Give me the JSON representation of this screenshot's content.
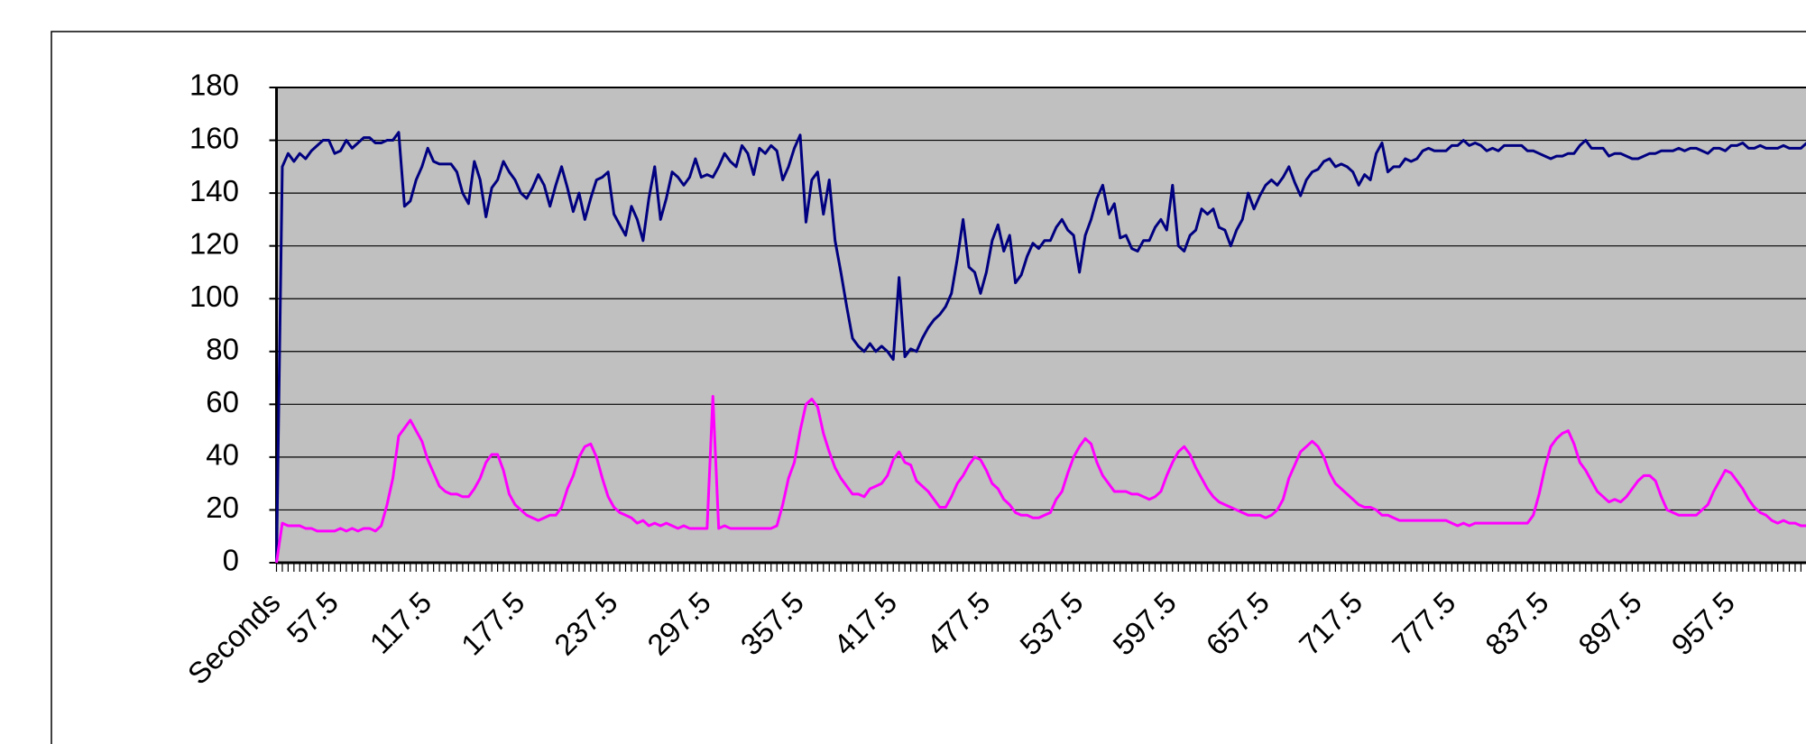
{
  "chart_data": {
    "type": "line",
    "categories": [
      "Seconds",
      null,
      null,
      null,
      null,
      null,
      null,
      null,
      null,
      null,
      "57.5",
      null,
      null,
      null,
      null,
      null,
      null,
      null,
      null,
      null,
      null,
      null,
      null,
      null,
      null,
      null,
      "117.5",
      null,
      null,
      null,
      null,
      null,
      null,
      null,
      null,
      null,
      null,
      null,
      null,
      null,
      null,
      null,
      "177.5",
      null,
      null,
      null,
      null,
      null,
      null,
      null,
      null,
      null,
      null,
      null,
      null,
      null,
      null,
      null,
      "237.5",
      null,
      null,
      null,
      null,
      null,
      null,
      null,
      null,
      null,
      null,
      null,
      null,
      null,
      null,
      null,
      "297.5",
      null,
      null,
      null,
      null,
      null,
      null,
      null,
      null,
      null,
      null,
      null,
      null,
      null,
      null,
      null,
      "357.5",
      null,
      null,
      null,
      null,
      null,
      null,
      null,
      null,
      null,
      null,
      null,
      null,
      null,
      null,
      null,
      "417.5",
      null,
      null,
      null,
      null,
      null,
      null,
      null,
      null,
      null,
      null,
      null,
      null,
      null,
      null,
      null,
      "477.5",
      null,
      null,
      null,
      null,
      null,
      null,
      null,
      null,
      null,
      null,
      null,
      null,
      null,
      null,
      null,
      "537.5",
      null,
      null,
      null,
      null,
      null,
      null,
      null,
      null,
      null,
      null,
      null,
      null,
      null,
      null,
      null,
      "597.5",
      null,
      null,
      null,
      null,
      null,
      null,
      null,
      null,
      null,
      null,
      null,
      null,
      null,
      null,
      null,
      "657.5",
      null,
      null,
      null,
      null,
      null,
      null,
      null,
      null,
      null,
      null,
      null,
      null,
      null,
      null,
      null,
      "717.5",
      null,
      null,
      null,
      null,
      null,
      null,
      null,
      null,
      null,
      null,
      null,
      null,
      null,
      null,
      null,
      "777.5",
      null,
      null,
      null,
      null,
      null,
      null,
      null,
      null,
      null,
      null,
      null,
      null,
      null,
      null,
      null,
      "837.5",
      null,
      null,
      null,
      null,
      null,
      null,
      null,
      null,
      null,
      null,
      null,
      null,
      null,
      null,
      null,
      "897.5",
      null,
      null,
      null,
      null,
      null,
      null,
      null,
      null,
      null,
      null,
      null,
      null,
      null,
      null,
      null,
      "957.5",
      null,
      null,
      null,
      null,
      null,
      null,
      null,
      null,
      null,
      null,
      null,
      null,
      null
    ],
    "series": [
      {
        "color": "#000080",
        "values": [
          0,
          150,
          155,
          152,
          155,
          153,
          156,
          158,
          160,
          160,
          155,
          156,
          160,
          157,
          159,
          161,
          161,
          159,
          159,
          160,
          160,
          163,
          135,
          137,
          145,
          150,
          157,
          152,
          151,
          151,
          151,
          148,
          140,
          136,
          152,
          145,
          131,
          142,
          145,
          152,
          148,
          145,
          140,
          138,
          142,
          147,
          143,
          135,
          143,
          150,
          142,
          133,
          140,
          130,
          138,
          145,
          146,
          148,
          132,
          128,
          124,
          135,
          130,
          122,
          138,
          150,
          130,
          138,
          148,
          146,
          143,
          146,
          153,
          146,
          147,
          146,
          150,
          155,
          152,
          150,
          158,
          155,
          147,
          157,
          155,
          158,
          156,
          145,
          150,
          157,
          162,
          129,
          145,
          148,
          132,
          145,
          122,
          110,
          97,
          85,
          82,
          80,
          83,
          80,
          82,
          80,
          77,
          108,
          78,
          81,
          80,
          85,
          89,
          92,
          94,
          97,
          102,
          115,
          130,
          112,
          110,
          102,
          110,
          122,
          128,
          118,
          124,
          106,
          109,
          116,
          121,
          119,
          122,
          122,
          127,
          130,
          126,
          124,
          110,
          124,
          130,
          138,
          143,
          132,
          136,
          123,
          124,
          119,
          118,
          122,
          122,
          127,
          130,
          126,
          143,
          120,
          118,
          124,
          126,
          134,
          132,
          134,
          127,
          126,
          120,
          126,
          130,
          140,
          134,
          139,
          143,
          145,
          143,
          146,
          150,
          144,
          139,
          145,
          148,
          149,
          152,
          153,
          150,
          151,
          150,
          148,
          143,
          147,
          145,
          155,
          159,
          148,
          150,
          150,
          153,
          152,
          153,
          156,
          157,
          156,
          156,
          156,
          158,
          158,
          160,
          158,
          159,
          158,
          156,
          157,
          156,
          158,
          158,
          158,
          158,
          156,
          156,
          155,
          154,
          153,
          154,
          154,
          155,
          155,
          158,
          160,
          157,
          157,
          157,
          154,
          155,
          155,
          154,
          153,
          153,
          154,
          155,
          155,
          156,
          156,
          156,
          157,
          156,
          157,
          157,
          156,
          155,
          157,
          157,
          156,
          158,
          158,
          159,
          157,
          157,
          158,
          157,
          157,
          157,
          158,
          157,
          157,
          157,
          159
        ]
      },
      {
        "color": "#ff00ff",
        "values": [
          0,
          15,
          14,
          14,
          14,
          13,
          13,
          12,
          12,
          12,
          12,
          13,
          12,
          13,
          12,
          13,
          13,
          12,
          14,
          22,
          32,
          48,
          51,
          54,
          50,
          46,
          39,
          34,
          29,
          27,
          26,
          26,
          25,
          25,
          28,
          32,
          38,
          41,
          41,
          35,
          26,
          22,
          20,
          18,
          17,
          16,
          17,
          18,
          18,
          21,
          28,
          33,
          40,
          44,
          45,
          40,
          32,
          25,
          21,
          19,
          18,
          17,
          15,
          16,
          14,
          15,
          14,
          15,
          14,
          13,
          14,
          13,
          13,
          13,
          13,
          63,
          13,
          14,
          13,
          13,
          13,
          13,
          13,
          13,
          13,
          13,
          14,
          22,
          32,
          38,
          50,
          60,
          62,
          59,
          49,
          42,
          36,
          32,
          29,
          26,
          26,
          25,
          28,
          29,
          30,
          33,
          39,
          42,
          38,
          37,
          31,
          29,
          27,
          24,
          21,
          21,
          25,
          30,
          33,
          37,
          40,
          39,
          35,
          30,
          28,
          24,
          22,
          19,
          18,
          18,
          17,
          17,
          18,
          19,
          24,
          27,
          34,
          40,
          44,
          47,
          45,
          38,
          33,
          30,
          27,
          27,
          27,
          26,
          26,
          25,
          24,
          25,
          27,
          33,
          38,
          42,
          44,
          41,
          36,
          32,
          28,
          25,
          23,
          22,
          21,
          20,
          19,
          18,
          18,
          18,
          17,
          18,
          20,
          24,
          32,
          37,
          42,
          44,
          46,
          44,
          40,
          34,
          30,
          28,
          26,
          24,
          22,
          21,
          21,
          20,
          18,
          18,
          17,
          16,
          16,
          16,
          16,
          16,
          16,
          16,
          16,
          16,
          15,
          14,
          15,
          14,
          15,
          15,
          15,
          15,
          15,
          15,
          15,
          15,
          15,
          15,
          18,
          26,
          36,
          44,
          47,
          49,
          50,
          45,
          38,
          35,
          31,
          27,
          25,
          23,
          24,
          23,
          25,
          28,
          31,
          33,
          33,
          31,
          25,
          20,
          19,
          18,
          18,
          18,
          18,
          20,
          22,
          27,
          31,
          35,
          34,
          31,
          28,
          24,
          21,
          19,
          18,
          16,
          15,
          16,
          15,
          15,
          14,
          14
        ]
      }
    ],
    "ylim": [
      0,
      180
    ],
    "yticks": [
      0,
      20,
      40,
      60,
      80,
      100,
      120,
      140,
      160,
      180
    ],
    "grid": true
  }
}
